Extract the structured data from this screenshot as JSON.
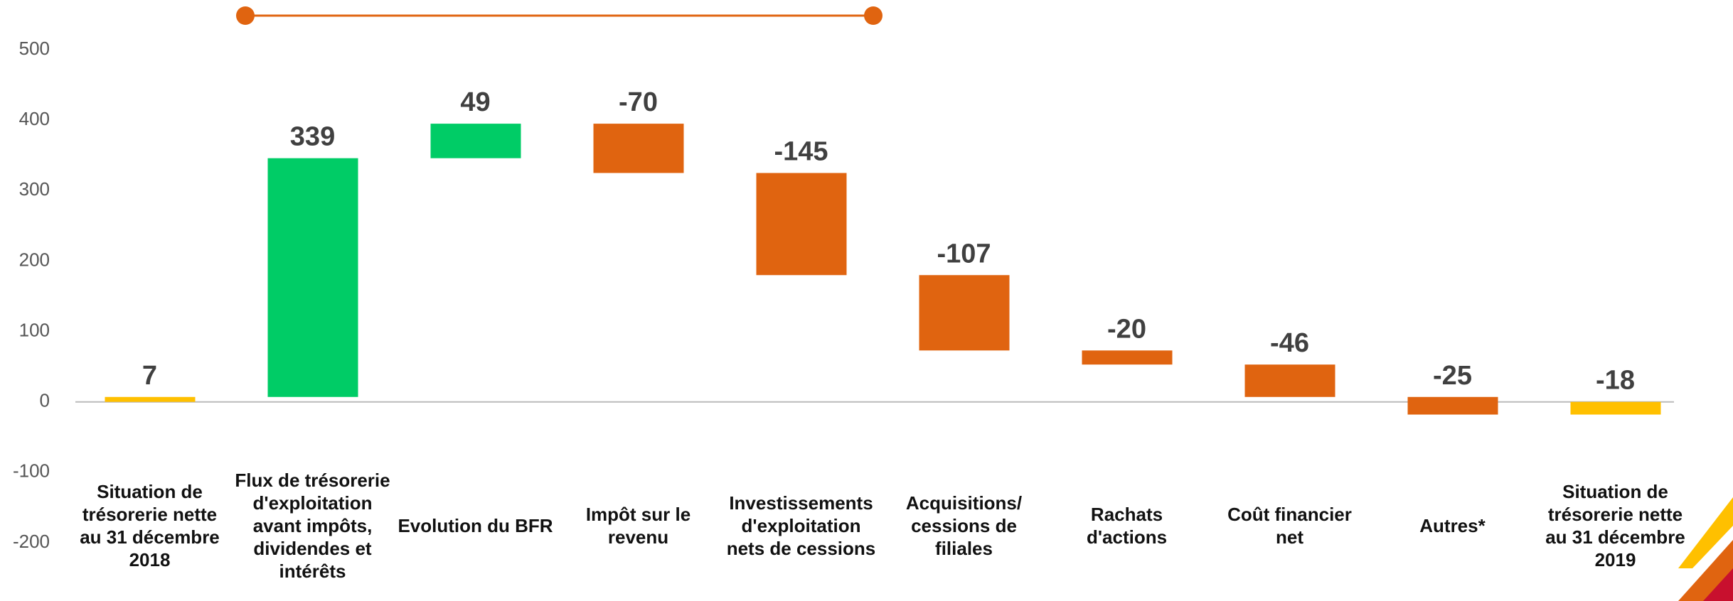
{
  "chart_data": {
    "type": "waterfall",
    "categories": [
      "Situation de trésorerie nette au 31 décembre 2018",
      "Flux de trésorerie d'exploitation avant impôts, dividendes et intérêts",
      "Evolution du BFR",
      "Impôt sur le revenu",
      "Investissements d'exploitation nets de cessions",
      "Acquisitions/ cessions de filiales",
      "Rachats d'actions",
      "Coût financier net",
      "Autres*",
      "Situation de trésorerie nette au 31 décembre 2019"
    ],
    "values": [
      7,
      339,
      49,
      -70,
      -145,
      -107,
      -20,
      -46,
      -25,
      -18
    ],
    "is_total": [
      true,
      false,
      false,
      false,
      false,
      false,
      false,
      false,
      false,
      true
    ],
    "colors": [
      "#ffc000",
      "#00cc66",
      "#00cc66",
      "#e06410",
      "#e06410",
      "#e06410",
      "#e06410",
      "#e06410",
      "#e06410",
      "#ffc000"
    ],
    "ylim": [
      -200,
      500
    ],
    "yticks": [
      -200,
      -100,
      0,
      100,
      200,
      300,
      400,
      500
    ],
    "grid": false
  }
}
